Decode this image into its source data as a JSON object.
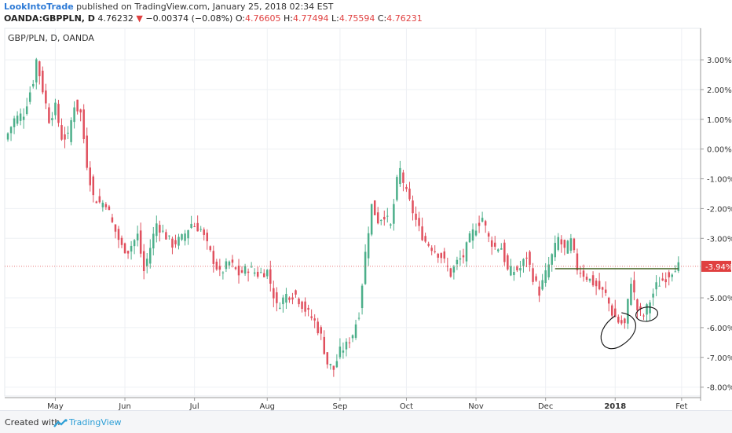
{
  "header": {
    "author": "LookIntoTrade",
    "published_text": "published on TradingView.com, January 25, 2018 02:34 EST",
    "symbol": "OANDA:GBPPLN, D",
    "last": "4.76232",
    "change_arrow": "▼",
    "change": "−0.00374 (−0.08%)",
    "o_label": "O:",
    "o_value": "4.76605",
    "h_label": "H:",
    "h_value": "4.77494",
    "l_label": "L:",
    "l_value": "4.75594",
    "c_label": "C:",
    "c_value": "4.76231"
  },
  "chart_title": "GBP/PLN, D, OANDA",
  "current_badge": "-3.94%",
  "footer": {
    "created_with": "Created with",
    "brand": "TradingView"
  },
  "colors": {
    "up": "#4caf8a",
    "down": "#e0505e",
    "trendline": "#3a5a1a",
    "badge": "#e04040",
    "brand": "#2d7ad6"
  },
  "chart_data": {
    "type": "candlestick",
    "title": "GBP/PLN, D, OANDA",
    "y_unit": "% change",
    "ylim": [
      -8.3,
      3.9
    ],
    "y_ticks": [
      "3.00%",
      "2.00%",
      "1.00%",
      "0.00%",
      "-1.00%",
      "-2.00%",
      "-3.00%",
      "-5.00%",
      "-6.00%",
      "-7.00%",
      "-8.00%"
    ],
    "y_tick_values": [
      3,
      2,
      1,
      0,
      -1,
      -2,
      -3,
      -5,
      -6,
      -7,
      -8
    ],
    "x_ticks": [
      "May",
      "Jun",
      "Jul",
      "Aug",
      "Sep",
      "Oct",
      "Nov",
      "Dec",
      "2018",
      "Fet"
    ],
    "x_tick_index": [
      16,
      38,
      60,
      83,
      106,
      127,
      149,
      171,
      193,
      214
    ],
    "x_range": [
      0,
      220
    ],
    "current_value": -3.94,
    "trendline": {
      "from_index": 174,
      "to_index": 213,
      "value": -4.02
    },
    "anchors": [
      [
        0,
        0.3
      ],
      [
        3,
        1.0
      ],
      [
        6,
        1.2
      ],
      [
        9,
        2.3
      ],
      [
        10,
        3.0
      ],
      [
        11,
        2.5
      ],
      [
        14,
        1.0
      ],
      [
        16,
        1.4
      ],
      [
        18,
        0.4
      ],
      [
        20,
        0.4
      ],
      [
        22,
        1.5
      ],
      [
        24,
        1.2
      ],
      [
        26,
        -0.5
      ],
      [
        28,
        -1.6
      ],
      [
        30,
        -1.8
      ],
      [
        32,
        -1.8
      ],
      [
        34,
        -2.5
      ],
      [
        37,
        -3.3
      ],
      [
        39,
        -3.4
      ],
      [
        42,
        -2.9
      ],
      [
        44,
        -4.1
      ],
      [
        46,
        -3.3
      ],
      [
        48,
        -2.5
      ],
      [
        50,
        -2.8
      ],
      [
        53,
        -3.2
      ],
      [
        56,
        -3.0
      ],
      [
        59,
        -2.5
      ],
      [
        62,
        -2.7
      ],
      [
        65,
        -3.5
      ],
      [
        68,
        -4.2
      ],
      [
        71,
        -3.8
      ],
      [
        74,
        -4.2
      ],
      [
        77,
        -4.0
      ],
      [
        80,
        -4.2
      ],
      [
        83,
        -4.1
      ],
      [
        86,
        -5.3
      ],
      [
        89,
        -4.9
      ],
      [
        92,
        -4.9
      ],
      [
        95,
        -5.4
      ],
      [
        98,
        -5.8
      ],
      [
        100,
        -6.3
      ],
      [
        102,
        -7.2
      ],
      [
        104,
        -7.4
      ],
      [
        106,
        -6.8
      ],
      [
        108,
        -6.6
      ],
      [
        110,
        -6.2
      ],
      [
        112,
        -5.5
      ],
      [
        114,
        -3.5
      ],
      [
        116,
        -1.9
      ],
      [
        118,
        -2.4
      ],
      [
        120,
        -2.2
      ],
      [
        122,
        -2.6
      ],
      [
        124,
        -1.1
      ],
      [
        125,
        -0.7
      ],
      [
        127,
        -1.5
      ],
      [
        129,
        -2.1
      ],
      [
        131,
        -2.7
      ],
      [
        133,
        -3.1
      ],
      [
        135,
        -3.3
      ],
      [
        138,
        -3.6
      ],
      [
        141,
        -4.2
      ],
      [
        143,
        -3.8
      ],
      [
        145,
        -3.6
      ],
      [
        147,
        -3.0
      ],
      [
        149,
        -2.6
      ],
      [
        151,
        -2.3
      ],
      [
        153,
        -3.0
      ],
      [
        155,
        -3.3
      ],
      [
        157,
        -3.3
      ],
      [
        159,
        -4.1
      ],
      [
        161,
        -4.1
      ],
      [
        163,
        -4.0
      ],
      [
        165,
        -3.6
      ],
      [
        167,
        -4.3
      ],
      [
        169,
        -4.8
      ],
      [
        171,
        -4.2
      ],
      [
        173,
        -3.6
      ],
      [
        175,
        -3.0
      ],
      [
        177,
        -3.4
      ],
      [
        179,
        -3.1
      ],
      [
        181,
        -4.0
      ],
      [
        184,
        -4.3
      ],
      [
        187,
        -4.6
      ],
      [
        190,
        -4.9
      ],
      [
        192,
        -5.5
      ],
      [
        194,
        -5.8
      ],
      [
        196,
        -5.9
      ],
      [
        198,
        -4.4
      ],
      [
        200,
        -5.4
      ],
      [
        202,
        -5.6
      ],
      [
        204,
        -5.1
      ],
      [
        206,
        -4.6
      ],
      [
        208,
        -4.4
      ],
      [
        210,
        -4.2
      ],
      [
        212,
        -3.94
      ],
      [
        213,
        -3.94
      ]
    ]
  }
}
